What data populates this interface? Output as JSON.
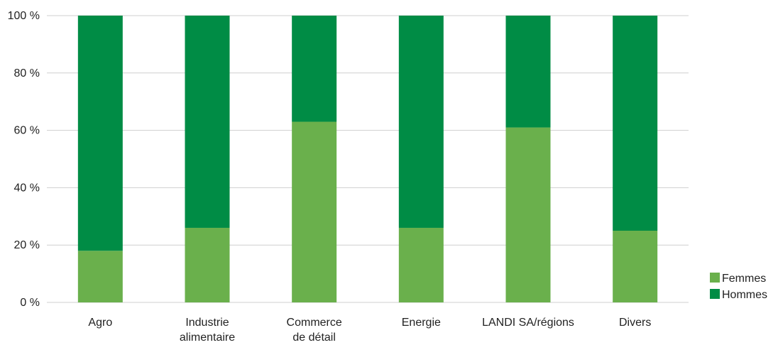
{
  "chart_data": {
    "type": "bar",
    "stacked": true,
    "categories": [
      [
        "Agro"
      ],
      [
        "Industrie",
        "alimentaire"
      ],
      [
        "Commerce",
        "de détail"
      ],
      [
        "Energie"
      ],
      [
        "LANDI SA/régions"
      ],
      [
        "Divers"
      ]
    ],
    "series": [
      {
        "name": "Femmes",
        "color": "#6ab04c",
        "values": [
          18,
          26,
          63,
          26,
          61,
          25
        ]
      },
      {
        "name": "Hommes",
        "color": "#008c45",
        "values": [
          82,
          74,
          37,
          74,
          39,
          75
        ]
      }
    ],
    "y_ticks": [
      "0 %",
      "20 %",
      "40 %",
      "60 %",
      "80 %",
      "100 %"
    ],
    "ylim": [
      0,
      100
    ],
    "grid": true,
    "legend": "bottom-right"
  }
}
